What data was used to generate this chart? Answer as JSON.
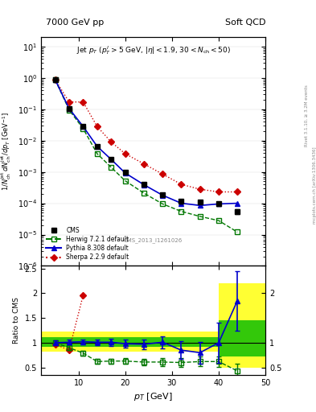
{
  "title_left": "7000 GeV pp",
  "title_right": "Soft QCD",
  "cms_label": "CMS_2013_I1261026",
  "xlabel": "p_{T} [GeV]",
  "ylabel": "1/N_{ch}^{jet} dN_{ch}^{jet}/dp_{T} [GeV^{-1}]",
  "ylabel_ratio": "Ratio to CMS",
  "cms_pt": [
    5,
    8,
    11,
    14,
    17,
    20,
    24,
    28,
    32,
    36,
    40,
    44
  ],
  "cms_val": [
    0.88,
    0.105,
    0.028,
    0.0065,
    0.0025,
    0.00095,
    0.0004,
    0.00019,
    0.000115,
    0.00011,
    9.5e-05,
    5.5e-05
  ],
  "cms_err": [
    0.05,
    0.006,
    0.002,
    0.0005,
    0.0002,
    7e-05,
    3e-05,
    2e-05,
    1.5e-05,
    1.5e-05,
    1.5e-05,
    1e-05
  ],
  "herwig_pt": [
    5,
    8,
    11,
    14,
    17,
    20,
    24,
    28,
    32,
    36,
    40,
    44
  ],
  "herwig_val": [
    0.88,
    0.095,
    0.024,
    0.0038,
    0.0014,
    0.00052,
    0.00021,
    9.5e-05,
    5.5e-05,
    3.8e-05,
    2.8e-05,
    1.2e-05
  ],
  "pythia_pt": [
    5,
    8,
    11,
    14,
    17,
    20,
    24,
    28,
    32,
    36,
    40,
    44
  ],
  "pythia_val": [
    0.88,
    0.105,
    0.028,
    0.0065,
    0.0025,
    0.00092,
    0.00039,
    0.00018,
    0.0001,
    8.5e-05,
    9.5e-05,
    0.0001
  ],
  "sherpa_pt": [
    5,
    8,
    11,
    14,
    17,
    20,
    24,
    28,
    32,
    36,
    40,
    44
  ],
  "sherpa_val": [
    0.88,
    0.17,
    0.17,
    0.028,
    0.009,
    0.0038,
    0.0018,
    0.00085,
    0.0004,
    0.00028,
    0.00023,
    0.00023
  ],
  "ratio_herwig": [
    1.0,
    0.9,
    0.79,
    0.62,
    0.63,
    0.63,
    0.61,
    0.61,
    0.6,
    0.62,
    0.62,
    0.43
  ],
  "ratio_herwig_err": [
    0.04,
    0.05,
    0.05,
    0.05,
    0.05,
    0.06,
    0.07,
    0.08,
    0.09,
    0.1,
    0.11,
    0.15
  ],
  "ratio_pythia": [
    1.0,
    1.01,
    1.02,
    1.01,
    1.01,
    0.98,
    0.97,
    1.01,
    0.85,
    0.8,
    1.0,
    1.85
  ],
  "ratio_pythia_err": [
    0.04,
    0.05,
    0.05,
    0.06,
    0.07,
    0.08,
    0.1,
    0.12,
    0.18,
    0.22,
    0.4,
    0.6
  ],
  "ratio_sherpa_pt": [
    5,
    8,
    11
  ],
  "ratio_sherpa": [
    0.97,
    0.85,
    1.96
  ],
  "cms_color": "#000000",
  "herwig_color": "#007700",
  "pythia_color": "#0000cc",
  "sherpa_color": "#cc0000",
  "band_yellow": "#ffff00",
  "band_green": "#00bb00",
  "ylim_main": [
    1e-06,
    20
  ],
  "xlim": [
    2,
    50
  ],
  "ylim_ratio": [
    0.35,
    2.55
  ],
  "band_edges": [
    2,
    36,
    40,
    50
  ],
  "band_yellow_lo": [
    0.82,
    0.82,
    0.5,
    0.5
  ],
  "band_yellow_hi": [
    1.22,
    1.22,
    2.2,
    2.2
  ],
  "band_green_lo": [
    0.91,
    0.91,
    0.72,
    0.72
  ],
  "band_green_hi": [
    1.11,
    1.11,
    1.45,
    1.45
  ]
}
